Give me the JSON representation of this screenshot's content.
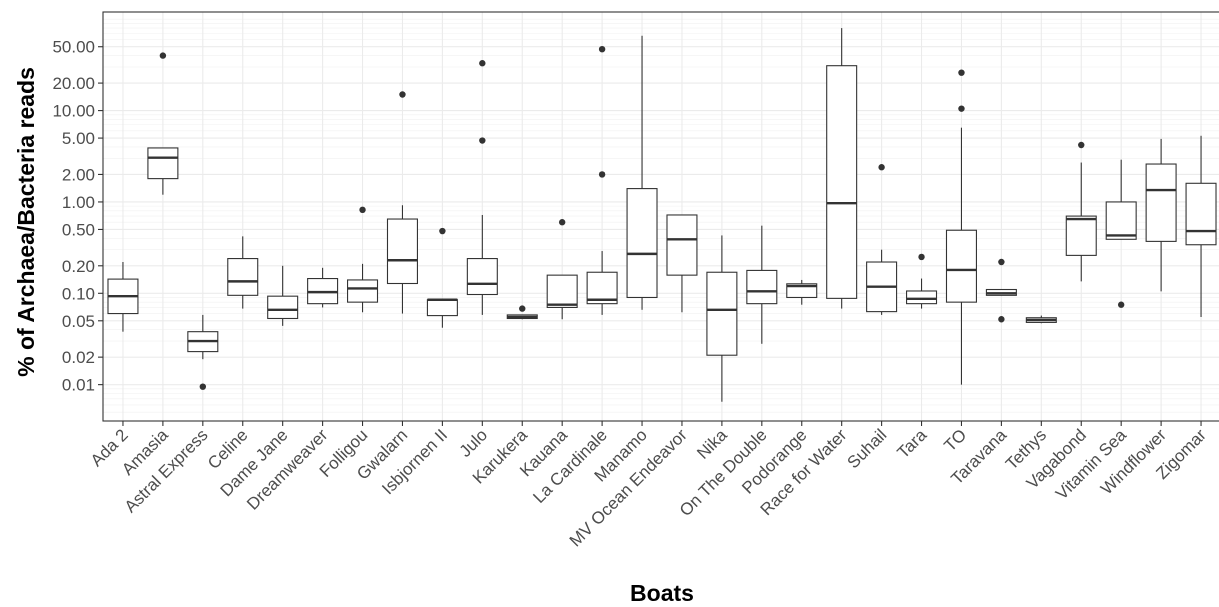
{
  "chart_data": {
    "type": "box",
    "title": "",
    "xlabel": "Boats",
    "ylabel": "% of Archaea/Bacteria reads",
    "y_scale": "log10",
    "ylim": [
      0.004,
      120
    ],
    "grid": true,
    "legend": "none",
    "y_ticks": [
      0.01,
      0.02,
      0.05,
      0.1,
      0.2,
      0.5,
      1,
      2,
      5,
      10,
      20,
      50
    ],
    "y_tick_labels": [
      "0.01",
      "0.02",
      "0.05",
      "0.10",
      "0.20",
      "0.50",
      "1.00",
      "2.00",
      "5.00",
      "10.00",
      "20.00",
      "50.00"
    ],
    "categories": [
      "Ada 2",
      "Amasia",
      "Astral Express",
      "Celine",
      "Dame Jane",
      "Dreamweaver",
      "Folligou",
      "Gwalarn",
      "Isbjornen II",
      "Julo",
      "Karukera",
      "Kauana",
      "La Cardinale",
      "Manamo",
      "MV Ocean Endeavor",
      "Nika",
      "On The Double",
      "Podorange",
      "Race for Water",
      "Suhail",
      "Tara",
      "TO",
      "Taravana",
      "Tethys",
      "Vagabond",
      "Vitamin Sea",
      "Windflower",
      "Zigomar"
    ],
    "boxes": [
      {
        "category": "Ada 2",
        "whisker_low": 0.038,
        "q1": 0.06,
        "median": 0.093,
        "q3": 0.143,
        "whisker_high": 0.22,
        "outliers": []
      },
      {
        "category": "Amasia",
        "whisker_low": 1.2,
        "q1": 1.8,
        "median": 3.05,
        "q3": 3.9,
        "whisker_high": 3.9,
        "outliers": [
          40
        ]
      },
      {
        "category": "Astral Express",
        "whisker_low": 0.019,
        "q1": 0.023,
        "median": 0.03,
        "q3": 0.038,
        "whisker_high": 0.058,
        "outliers": [
          0.0095
        ]
      },
      {
        "category": "Celine",
        "whisker_low": 0.068,
        "q1": 0.095,
        "median": 0.135,
        "q3": 0.24,
        "whisker_high": 0.42,
        "outliers": []
      },
      {
        "category": "Dame Jane",
        "whisker_low": 0.044,
        "q1": 0.053,
        "median": 0.066,
        "q3": 0.093,
        "whisker_high": 0.2,
        "outliers": []
      },
      {
        "category": "Dreamweaver",
        "whisker_low": 0.07,
        "q1": 0.077,
        "median": 0.103,
        "q3": 0.145,
        "whisker_high": 0.19,
        "outliers": []
      },
      {
        "category": "Folligou",
        "whisker_low": 0.062,
        "q1": 0.08,
        "median": 0.113,
        "q3": 0.14,
        "whisker_high": 0.21,
        "outliers": [
          0.82
        ]
      },
      {
        "category": "Gwalarn",
        "whisker_low": 0.06,
        "q1": 0.128,
        "median": 0.23,
        "q3": 0.65,
        "whisker_high": 0.92,
        "outliers": [
          15
        ]
      },
      {
        "category": "Isbjornen II",
        "whisker_low": 0.042,
        "q1": 0.057,
        "median": 0.085,
        "q3": 0.085,
        "whisker_high": 0.085,
        "outliers": [
          0.48
        ]
      },
      {
        "category": "Julo",
        "whisker_low": 0.058,
        "q1": 0.097,
        "median": 0.127,
        "q3": 0.24,
        "whisker_high": 0.72,
        "outliers": [
          4.7,
          33
        ]
      },
      {
        "category": "Karukera",
        "whisker_low": 0.052,
        "q1": 0.053,
        "median": 0.055,
        "q3": 0.058,
        "whisker_high": 0.058,
        "outliers": [
          0.068
        ]
      },
      {
        "category": "Kauana",
        "whisker_low": 0.052,
        "q1": 0.07,
        "median": 0.075,
        "q3": 0.158,
        "whisker_high": 0.158,
        "outliers": [
          0.6
        ]
      },
      {
        "category": "La Cardinale",
        "whisker_low": 0.058,
        "q1": 0.077,
        "median": 0.085,
        "q3": 0.17,
        "whisker_high": 0.29,
        "outliers": [
          2.0,
          47
        ]
      },
      {
        "category": "Manamo",
        "whisker_low": 0.066,
        "q1": 0.09,
        "median": 0.27,
        "q3": 1.4,
        "whisker_high": 66,
        "outliers": []
      },
      {
        "category": "MV Ocean Endeavor",
        "whisker_low": 0.062,
        "q1": 0.158,
        "median": 0.39,
        "q3": 0.72,
        "whisker_high": 0.72,
        "outliers": []
      },
      {
        "category": "Nika",
        "whisker_low": 0.0065,
        "q1": 0.021,
        "median": 0.066,
        "q3": 0.17,
        "whisker_high": 0.43,
        "outliers": []
      },
      {
        "category": "On The Double",
        "whisker_low": 0.028,
        "q1": 0.077,
        "median": 0.105,
        "q3": 0.178,
        "whisker_high": 0.55,
        "outliers": []
      },
      {
        "category": "Podorange",
        "whisker_low": 0.075,
        "q1": 0.09,
        "median": 0.12,
        "q3": 0.127,
        "whisker_high": 0.14,
        "outliers": []
      },
      {
        "category": "Race for Water",
        "whisker_low": 0.068,
        "q1": 0.088,
        "median": 0.97,
        "q3": 31,
        "whisker_high": 80,
        "outliers": []
      },
      {
        "category": "Suhail",
        "whisker_low": 0.058,
        "q1": 0.063,
        "median": 0.118,
        "q3": 0.22,
        "whisker_high": 0.3,
        "outliers": [
          2.4
        ]
      },
      {
        "category": "Tara",
        "whisker_low": 0.068,
        "q1": 0.077,
        "median": 0.087,
        "q3": 0.106,
        "whisker_high": 0.145,
        "outliers": [
          0.25
        ]
      },
      {
        "category": "TO",
        "whisker_low": 0.01,
        "q1": 0.08,
        "median": 0.18,
        "q3": 0.49,
        "whisker_high": 6.5,
        "outliers": [
          10.5,
          26
        ]
      },
      {
        "category": "Taravana",
        "whisker_low": 0.095,
        "q1": 0.095,
        "median": 0.1,
        "q3": 0.11,
        "whisker_high": 0.11,
        "outliers": [
          0.052,
          0.22
        ]
      },
      {
        "category": "Tethys",
        "whisker_low": 0.047,
        "q1": 0.048,
        "median": 0.051,
        "q3": 0.054,
        "whisker_high": 0.057,
        "outliers": []
      },
      {
        "category": "Vagabond",
        "whisker_low": 0.135,
        "q1": 0.26,
        "median": 0.65,
        "q3": 0.7,
        "whisker_high": 2.7,
        "outliers": [
          4.2
        ]
      },
      {
        "category": "Vitamin Sea",
        "whisker_low": 0.39,
        "q1": 0.39,
        "median": 0.43,
        "q3": 1.0,
        "whisker_high": 2.9,
        "outliers": [
          0.075
        ]
      },
      {
        "category": "Windflower",
        "whisker_low": 0.105,
        "q1": 0.37,
        "median": 1.35,
        "q3": 2.6,
        "whisker_high": 4.9,
        "outliers": []
      },
      {
        "category": "Zigomar",
        "whisker_low": 0.055,
        "q1": 0.34,
        "median": 0.48,
        "q3": 1.6,
        "whisker_high": 5.3,
        "outliers": []
      }
    ]
  }
}
